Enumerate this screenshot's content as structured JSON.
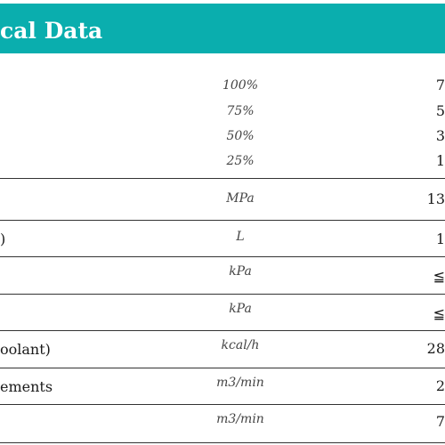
{
  "header": {
    "title": "cal Data"
  },
  "rows": [
    {
      "label": "",
      "subrows": [
        {
          "unit": "100%",
          "value": "7"
        },
        {
          "unit": "75%",
          "value": "5"
        },
        {
          "unit": "50%",
          "value": "3"
        },
        {
          "unit": "25%",
          "value": "1"
        }
      ]
    },
    {
      "label": "",
      "unit": "MPa",
      "value": "13"
    },
    {
      "label": ")",
      "unit": "L",
      "value": "1"
    },
    {
      "label": "",
      "unit": "kPa",
      "value": "≦"
    },
    {
      "label": "",
      "unit": "kPa",
      "value": "≦"
    },
    {
      "label": "oolant)",
      "unit": "kcal/h",
      "value": "28"
    },
    {
      "label": "ements",
      "unit": "m3/min",
      "value": "2"
    },
    {
      "label": "",
      "unit": "m3/min",
      "value": "7"
    }
  ],
  "colors": {
    "header_bg": "#0aaeae",
    "header_text": "#ffffff",
    "rule": "#333333"
  }
}
